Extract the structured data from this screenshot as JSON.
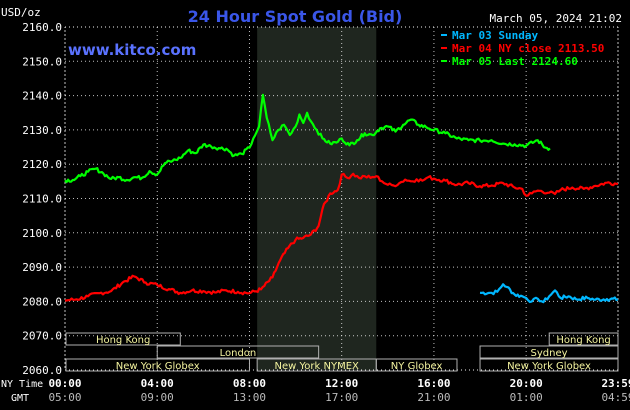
{
  "header": {
    "unit": "USD/oz",
    "title": "24 Hour Spot Gold (Bid)",
    "timestamp": "March 05, 2024 21:02",
    "site": "www.kitco.com"
  },
  "colors": {
    "background": "#000000",
    "grid": "#ffffff",
    "session_shade": "#1f261f",
    "title": "#3a56e8",
    "site": "#5a72ff",
    "sunday": "#00b7ff",
    "ny_close": "#ff0000",
    "last": "#00ff00",
    "session_box": "#f5f5a0",
    "session_box_border": "#b0b0b0"
  },
  "legend": [
    {
      "label": "Mar 03 Sunday",
      "color": "#00b7ff"
    },
    {
      "label": "Mar 04 NY close 2113.50",
      "color": "#ff0000"
    },
    {
      "label": "Mar 05 Last 2124.60",
      "color": "#00ff00"
    }
  ],
  "sessions": [
    {
      "label": "Hong Kong",
      "start": "00:00",
      "end": "05:00"
    },
    {
      "label": "Hong Kong",
      "start": "21:00",
      "end": "23:59"
    },
    {
      "label": "London",
      "start": "04:00",
      "end": "11:00"
    },
    {
      "label": "Sydney",
      "start": "18:00",
      "end": "23:59"
    },
    {
      "label": "New York Globex",
      "start": "00:00",
      "end": "08:00"
    },
    {
      "label": "New York NYMEX",
      "start": "08:20",
      "end": "13:30"
    },
    {
      "label": "NY Globex",
      "start": "13:30",
      "end": "17:00"
    },
    {
      "label": "New York Globex",
      "start": "18:00",
      "end": "23:59"
    }
  ],
  "time_rows": {
    "ny_label": "NY Time",
    "gmt_label": "GMT"
  },
  "chart_data": {
    "type": "line",
    "title": "24 Hour Spot Gold (Bid)",
    "ylabel": "USD/oz",
    "ylim": [
      2060,
      2160
    ],
    "yticks": [
      "2160.0",
      "2150.0",
      "2140.0",
      "2130.0",
      "2120.0",
      "2110.0",
      "2100.0",
      "2090.0",
      "2080.0",
      "2070.0",
      "2060.0"
    ],
    "xticks_ny": [
      "00:00",
      "04:00",
      "08:00",
      "12:00",
      "16:00",
      "20:00",
      "23:59"
    ],
    "xticks_gmt": [
      "05:00",
      "09:00",
      "13:00",
      "17:00",
      "21:00",
      "01:00",
      "04:59"
    ],
    "shaded_range": [
      "08:20",
      "13:30"
    ],
    "series": [
      {
        "name": "Mar 03 Sunday",
        "color": "#00b7ff",
        "points": [
          [
            "18:00",
            2082.5
          ],
          [
            "18:30",
            2082.5
          ],
          [
            "18:45",
            2082.8
          ],
          [
            "19:00",
            2085.0
          ],
          [
            "19:10",
            2084.2
          ],
          [
            "19:30",
            2082.0
          ],
          [
            "19:50",
            2081.5
          ],
          [
            "20:00",
            2081.0
          ],
          [
            "20:15",
            2080.0
          ],
          [
            "20:30",
            2080.8
          ],
          [
            "20:45",
            2079.8
          ],
          [
            "21:00",
            2081.5
          ],
          [
            "21:15",
            2083.2
          ],
          [
            "21:30",
            2081.0
          ],
          [
            "21:50",
            2081.5
          ],
          [
            "22:10",
            2080.6
          ],
          [
            "22:40",
            2081.0
          ],
          [
            "23:00",
            2080.5
          ],
          [
            "23:30",
            2080.7
          ],
          [
            "23:59",
            2080.6
          ]
        ]
      },
      {
        "name": "Mar 04 NY close 2113.50",
        "color": "#ff0000",
        "points": [
          [
            "00:00",
            2080.3
          ],
          [
            "00:30",
            2080.6
          ],
          [
            "01:00",
            2081.5
          ],
          [
            "01:30",
            2082.4
          ],
          [
            "02:00",
            2083.0
          ],
          [
            "02:30",
            2085.5
          ],
          [
            "03:00",
            2087.3
          ],
          [
            "03:30",
            2085.5
          ],
          [
            "04:00",
            2084.8
          ],
          [
            "04:30",
            2083.6
          ],
          [
            "05:00",
            2082.5
          ],
          [
            "05:30",
            2083.2
          ],
          [
            "06:00",
            2083.0
          ],
          [
            "06:30",
            2082.6
          ],
          [
            "07:00",
            2083.2
          ],
          [
            "07:30",
            2082.8
          ],
          [
            "08:00",
            2082.4
          ],
          [
            "08:30",
            2083.5
          ],
          [
            "09:00",
            2087.0
          ],
          [
            "09:20",
            2092.0
          ],
          [
            "09:40",
            2095.5
          ],
          [
            "10:00",
            2098.0
          ],
          [
            "10:20",
            2098.5
          ],
          [
            "10:40",
            2099.5
          ],
          [
            "11:00",
            2102.0
          ],
          [
            "11:10",
            2107.0
          ],
          [
            "11:30",
            2111.5
          ],
          [
            "11:50",
            2112.5
          ],
          [
            "12:00",
            2117.0
          ],
          [
            "12:15",
            2116.0
          ],
          [
            "12:30",
            2117.2
          ],
          [
            "12:45",
            2116.0
          ],
          [
            "13:00",
            2116.5
          ],
          [
            "13:15",
            2116.0
          ],
          [
            "13:30",
            2116.5
          ],
          [
            "13:45",
            2115.0
          ],
          [
            "14:00",
            2114.0
          ],
          [
            "14:15",
            2113.8
          ],
          [
            "14:30",
            2114.5
          ],
          [
            "14:45",
            2115.5
          ],
          [
            "15:00",
            2115.0
          ],
          [
            "15:15",
            2115.6
          ],
          [
            "15:30",
            2115.2
          ],
          [
            "15:45",
            2116.2
          ],
          [
            "16:00",
            2115.8
          ],
          [
            "16:30",
            2115.2
          ],
          [
            "17:00",
            2114.0
          ],
          [
            "17:30",
            2114.5
          ],
          [
            "18:00",
            2113.6
          ],
          [
            "18:30",
            2113.8
          ],
          [
            "19:00",
            2114.5
          ],
          [
            "19:30",
            2113.2
          ],
          [
            "19:50",
            2112.8
          ],
          [
            "20:00",
            2110.8
          ],
          [
            "20:15",
            2111.5
          ],
          [
            "20:30",
            2112.3
          ],
          [
            "21:00",
            2111.7
          ],
          [
            "21:15",
            2111.3
          ],
          [
            "21:30",
            2112.5
          ],
          [
            "22:00",
            2113.2
          ],
          [
            "22:30",
            2112.8
          ],
          [
            "23:00",
            2113.7
          ],
          [
            "23:30",
            2114.6
          ],
          [
            "23:59",
            2114.3
          ]
        ]
      },
      {
        "name": "Mar 05 Last 2124.60",
        "color": "#00ff00",
        "points": [
          [
            "00:00",
            2115.3
          ],
          [
            "00:20",
            2115.4
          ],
          [
            "00:40",
            2116.5
          ],
          [
            "01:00",
            2117.8
          ],
          [
            "01:20",
            2118.7
          ],
          [
            "01:40",
            2117.3
          ],
          [
            "02:00",
            2115.7
          ],
          [
            "02:20",
            2116.2
          ],
          [
            "02:40",
            2115.4
          ],
          [
            "03:00",
            2116.2
          ],
          [
            "03:20",
            2116.0
          ],
          [
            "03:40",
            2118.0
          ],
          [
            "04:00",
            2117.0
          ],
          [
            "04:20",
            2120.3
          ],
          [
            "04:40",
            2121.0
          ],
          [
            "05:00",
            2121.8
          ],
          [
            "05:20",
            2124.0
          ],
          [
            "05:40",
            2123.2
          ],
          [
            "06:00",
            2125.7
          ],
          [
            "06:20",
            2125.2
          ],
          [
            "06:40",
            2124.7
          ],
          [
            "07:00",
            2124.5
          ],
          [
            "07:20",
            2122.5
          ],
          [
            "07:40",
            2123.0
          ],
          [
            "08:00",
            2124.8
          ],
          [
            "08:10",
            2127.5
          ],
          [
            "08:25",
            2131.0
          ],
          [
            "08:35",
            2140.2
          ],
          [
            "08:45",
            2133.5
          ],
          [
            "09:00",
            2127.0
          ],
          [
            "09:15",
            2130.0
          ],
          [
            "09:30",
            2131.5
          ],
          [
            "09:45",
            2128.5
          ],
          [
            "10:00",
            2131.0
          ],
          [
            "10:10",
            2134.5
          ],
          [
            "10:20",
            2132.0
          ],
          [
            "10:30",
            2135.0
          ],
          [
            "10:40",
            2132.5
          ],
          [
            "10:55",
            2130.0
          ],
          [
            "11:10",
            2127.5
          ],
          [
            "11:30",
            2126.0
          ],
          [
            "11:50",
            2126.5
          ],
          [
            "12:00",
            2127.5
          ],
          [
            "12:20",
            2125.5
          ],
          [
            "12:40",
            2127.0
          ],
          [
            "13:00",
            2129.0
          ],
          [
            "13:20",
            2128.5
          ],
          [
            "13:40",
            2130.5
          ],
          [
            "14:00",
            2131.0
          ],
          [
            "14:20",
            2129.5
          ],
          [
            "14:40",
            2131.5
          ],
          [
            "15:00",
            2133.0
          ],
          [
            "15:20",
            2131.5
          ],
          [
            "15:40",
            2130.8
          ],
          [
            "16:00",
            2130.0
          ],
          [
            "16:30",
            2129.0
          ],
          [
            "17:00",
            2127.5
          ],
          [
            "17:30",
            2127.0
          ],
          [
            "18:00",
            2126.9
          ],
          [
            "18:30",
            2127.0
          ],
          [
            "19:00",
            2126.0
          ],
          [
            "19:30",
            2125.8
          ],
          [
            "20:00",
            2125.4
          ],
          [
            "20:30",
            2127.0
          ],
          [
            "20:50",
            2124.8
          ],
          [
            "21:02",
            2124.6
          ]
        ]
      }
    ]
  }
}
